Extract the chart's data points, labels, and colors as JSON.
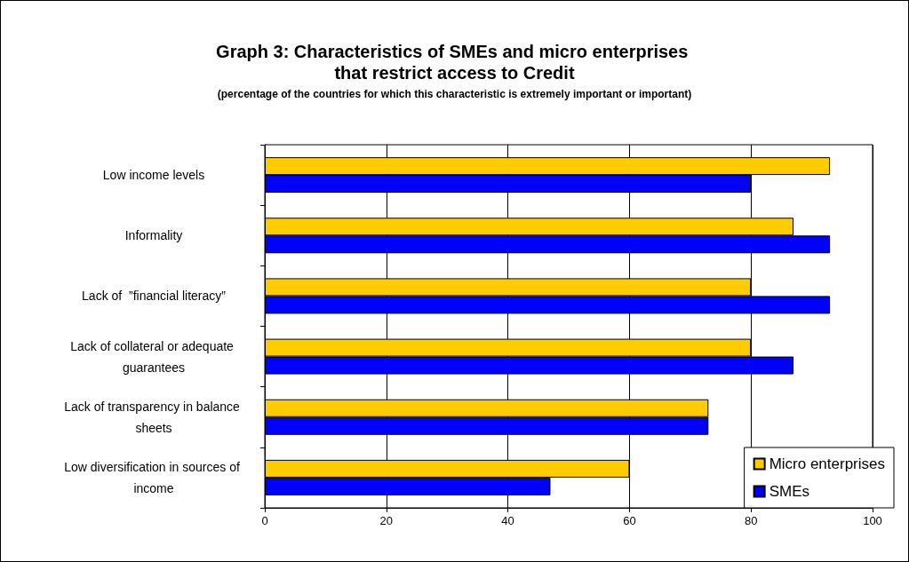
{
  "chart_data": {
    "type": "bar",
    "orientation": "horizontal",
    "title": "Graph 3: Characteristics of SMEs and micro enterprises that restrict access to Credit",
    "subtitle": "(percentage of the countries for which this characteristic is extremely important or important)",
    "categories": [
      "Low income levels",
      "Informality",
      "Lack of  ”financial literacy”",
      "Lack of collateral or adequate guarantees",
      "Lack of transparency in balance sheets",
      "Low diversification in sources of income"
    ],
    "series": [
      {
        "name": "Micro enterprises",
        "color": "#ffcc00",
        "values": [
          93,
          87,
          80,
          80,
          73,
          60
        ]
      },
      {
        "name": "SMEs",
        "color": "#0000ff",
        "values": [
          80,
          93,
          93,
          87,
          73,
          47
        ]
      }
    ],
    "xlim": [
      0,
      100
    ],
    "xticks": [
      0,
      20,
      40,
      60,
      80,
      100
    ],
    "grid": "x",
    "legend": "bottom right"
  }
}
